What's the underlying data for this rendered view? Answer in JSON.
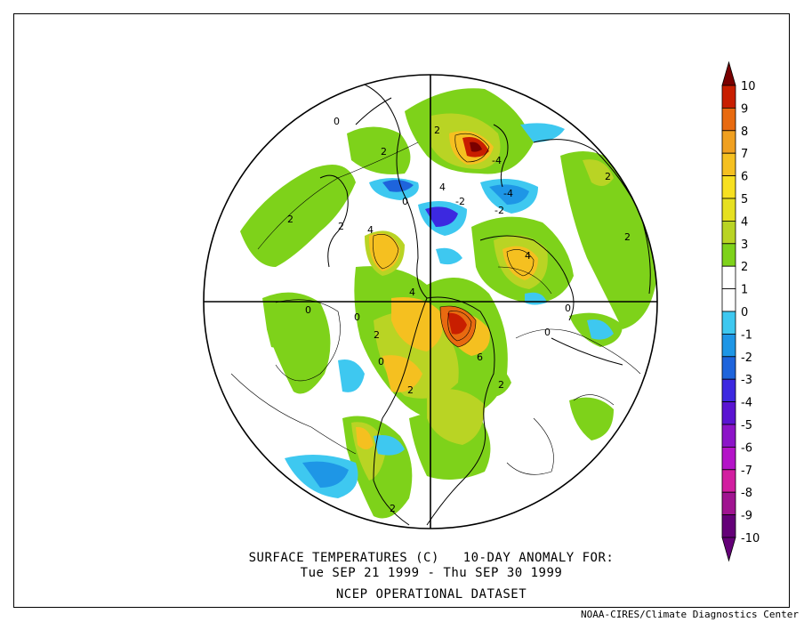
{
  "map": {
    "title_line1": "SURFACE TEMPERATURES (C)   10-DAY ANOMALY FOR:",
    "title_line2": "Tue SEP 21 1999 - Thu SEP 30 1999",
    "title_line3": "NCEP OPERATIONAL DATASET",
    "credit": "NOAA-CIRES/Climate Diagnostics Center",
    "projection": "north-polar-stereographic",
    "contour_labels": [
      "0",
      "2",
      "4",
      "-2",
      "-4",
      "6"
    ]
  },
  "colorbar": {
    "levels": [
      "10",
      "9",
      "8",
      "7",
      "6",
      "5",
      "4",
      "3",
      "2",
      "1",
      "0",
      "-1",
      "-2",
      "-3",
      "-4",
      "-5",
      "-6",
      "-7",
      "-8",
      "-9",
      "-10"
    ],
    "colors": [
      "#7a0000",
      "#c81e00",
      "#e86a10",
      "#f0a020",
      "#f5c020",
      "#f7e020",
      "#e6e020",
      "#b9d424",
      "#7ed21a",
      "#ffffff",
      "#ffffff",
      "#3ec8f0",
      "#1e96e6",
      "#1e64dc",
      "#3c28e0",
      "#5a14d2",
      "#8c14c8",
      "#b414c8",
      "#d21ea0",
      "#a01490",
      "#640078"
    ]
  }
}
